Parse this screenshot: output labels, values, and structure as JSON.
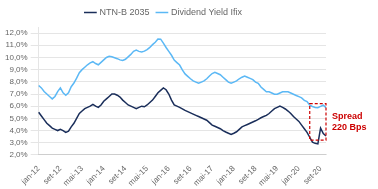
{
  "chart_data": {
    "type": "line",
    "categories": [
      "jan-12",
      null,
      null,
      null,
      null,
      null,
      null,
      null,
      "set-12",
      null,
      null,
      null,
      null,
      null,
      null,
      null,
      "mai-13",
      null,
      null,
      null,
      null,
      null,
      null,
      null,
      "jan-14",
      null,
      null,
      null,
      null,
      null,
      null,
      null,
      "set-14",
      null,
      null,
      null,
      null,
      null,
      null,
      null,
      "mai-15",
      null,
      null,
      null,
      null,
      null,
      null,
      null,
      "jan-16",
      null,
      null,
      null,
      null,
      null,
      null,
      null,
      "set-16",
      null,
      null,
      null,
      null,
      null,
      null,
      null,
      "mai-17",
      null,
      null,
      null,
      null,
      null,
      null,
      null,
      "jan-18",
      null,
      null,
      null,
      null,
      null,
      null,
      null,
      "set-18",
      null,
      null,
      null,
      null,
      null,
      null,
      null,
      "mai-19",
      null,
      null,
      null,
      null,
      null,
      null,
      null,
      "jan-20",
      null,
      null,
      null,
      null,
      null,
      null,
      null,
      "set-20",
      null,
      null
    ],
    "series": [
      {
        "name": "NTN-B 2035",
        "color": "#1a2e5a",
        "values": [
          0.055,
          0.052,
          0.049,
          0.046,
          0.044,
          0.042,
          0.041,
          0.04,
          0.041,
          0.04,
          0.0385,
          0.0395,
          0.043,
          0.046,
          0.05,
          0.054,
          0.056,
          0.058,
          0.059,
          0.06,
          0.0615,
          0.06,
          0.059,
          0.061,
          0.064,
          0.066,
          0.068,
          0.07,
          0.07,
          0.069,
          0.0675,
          0.065,
          0.063,
          0.061,
          0.06,
          0.059,
          0.058,
          0.059,
          0.06,
          0.0595,
          0.061,
          0.063,
          0.065,
          0.068,
          0.071,
          0.073,
          0.075,
          0.0735,
          0.07,
          0.065,
          0.061,
          0.06,
          0.059,
          0.0578,
          0.0565,
          0.0555,
          0.0545,
          0.0535,
          0.0525,
          0.0515,
          0.0505,
          0.0495,
          0.0485,
          0.0465,
          0.0445,
          0.0435,
          0.0425,
          0.0415,
          0.04,
          0.0388,
          0.0378,
          0.0368,
          0.0378,
          0.039,
          0.041,
          0.043,
          0.044,
          0.045,
          0.046,
          0.047,
          0.048,
          0.0492,
          0.0505,
          0.0515,
          0.0525,
          0.054,
          0.056,
          0.058,
          0.059,
          0.06,
          0.059,
          0.0577,
          0.056,
          0.054,
          0.0515,
          0.0495,
          0.0475,
          0.0445,
          0.0415,
          0.0385,
          0.0345,
          0.0305,
          0.0295,
          0.029,
          0.042,
          0.0375,
          0.0355
        ]
      },
      {
        "name": "Dividend Yield Ifix",
        "color": "#5bb8f5",
        "values": [
          0.077,
          0.075,
          0.072,
          0.07,
          0.068,
          0.066,
          0.068,
          0.072,
          0.075,
          0.071,
          0.069,
          0.071,
          0.076,
          0.079,
          0.083,
          0.0875,
          0.09,
          0.092,
          0.094,
          0.0955,
          0.0965,
          0.095,
          0.094,
          0.096,
          0.098,
          0.1,
          0.101,
          0.1005,
          0.0998,
          0.099,
          0.098,
          0.0975,
          0.0985,
          0.1005,
          0.1025,
          0.105,
          0.106,
          0.105,
          0.1045,
          0.1052,
          0.1065,
          0.1082,
          0.1105,
          0.1125,
          0.1152,
          0.115,
          0.1118,
          0.1082,
          0.105,
          0.1018,
          0.0978,
          0.0958,
          0.0938,
          0.0898,
          0.0865,
          0.0845,
          0.0825,
          0.0808,
          0.0798,
          0.0788,
          0.0798,
          0.0808,
          0.0825,
          0.0848,
          0.0868,
          0.0878,
          0.0868,
          0.0858,
          0.0838,
          0.0818,
          0.0798,
          0.0788,
          0.0798,
          0.0808,
          0.0825,
          0.0838,
          0.0848,
          0.0838,
          0.0828,
          0.0818,
          0.0798,
          0.0788,
          0.0758,
          0.0738,
          0.0718,
          0.0718,
          0.0708,
          0.0698,
          0.0698,
          0.0708,
          0.0718,
          0.0718,
          0.0718,
          0.0708,
          0.0698,
          0.0688,
          0.0678,
          0.0668,
          0.0648,
          0.0638,
          0.0608,
          0.0598,
          0.059,
          0.0588,
          0.0598,
          0.0608,
          0.0588
        ]
      }
    ],
    "ylim": [
      0.02,
      0.125
    ],
    "yticks": [
      {
        "value": 0.02,
        "label": "2,0%"
      },
      {
        "value": 0.03,
        "label": "3,0%"
      },
      {
        "value": 0.04,
        "label": "4,0%"
      },
      {
        "value": 0.05,
        "label": "5,0%"
      },
      {
        "value": 0.06,
        "label": "6,0%"
      },
      {
        "value": 0.07,
        "label": "7,0%"
      },
      {
        "value": 0.08,
        "label": "8,0%"
      },
      {
        "value": 0.09,
        "label": "9,0%"
      },
      {
        "value": 0.1,
        "label": "10,0%"
      },
      {
        "value": 0.11,
        "label": "11,0%"
      },
      {
        "value": 0.12,
        "label": "12,0%"
      }
    ],
    "grid": true,
    "legend": "top",
    "annotations": [
      {
        "text": "Spread\n220 Bps",
        "color": "#cc0000"
      }
    ]
  }
}
